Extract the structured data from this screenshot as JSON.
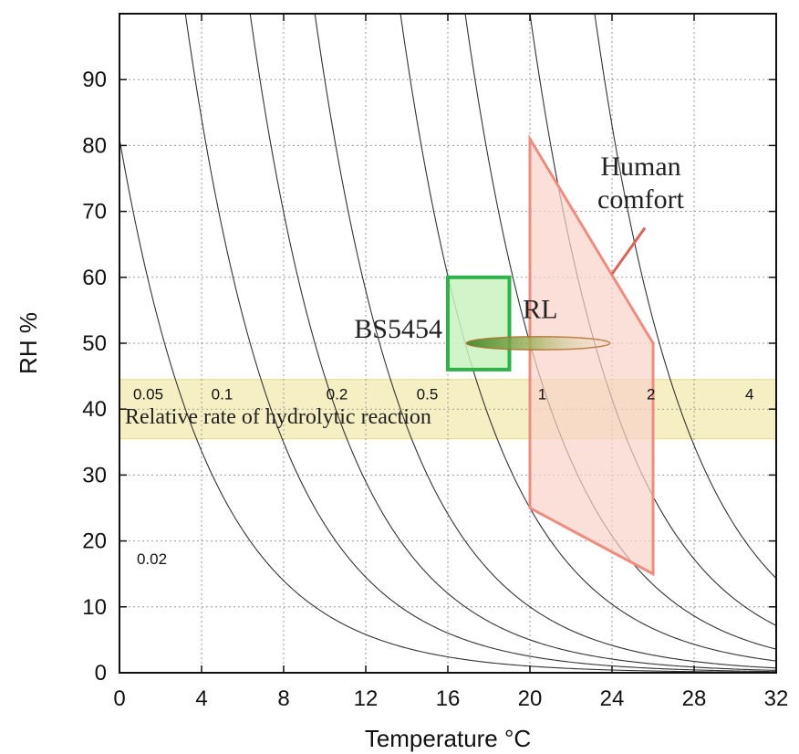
{
  "chart_data": {
    "type": "line",
    "xlabel": "Temperature °C",
    "ylabel": "RH %",
    "xlim": [
      0,
      32
    ],
    "ylim": [
      0,
      100
    ],
    "x_ticks": [
      0,
      4,
      8,
      12,
      16,
      20,
      24,
      28,
      32
    ],
    "y_ticks": [
      0,
      10,
      20,
      30,
      40,
      50,
      60,
      70,
      80,
      90
    ],
    "grid": true,
    "band": {
      "y_range": [
        35.5,
        44.5
      ],
      "caption": "Relative rate of hydrolytic reaction",
      "color": "#f5ecb8"
    },
    "isolines": [
      {
        "rate": 0.02,
        "label": "0.02",
        "label_x": 1.4
      },
      {
        "rate": 0.05,
        "label": "0.05",
        "label_x": 1.4
      },
      {
        "rate": 0.1,
        "label": "0.1",
        "label_x": 5.0
      },
      {
        "rate": 0.2,
        "label": "0.2",
        "label_x": 10.6
      },
      {
        "rate": 0.5,
        "label": "0.5",
        "label_x": 15.0
      },
      {
        "rate": 1,
        "label": "1",
        "label_x": 20.6
      },
      {
        "rate": 2,
        "label": "2",
        "label_x": 25.9
      },
      {
        "rate": 4,
        "label": "4",
        "label_x": 30.7
      }
    ],
    "regions": [
      {
        "name": "BS5454",
        "label": "BS5454",
        "shape": "rect",
        "x_range": [
          16,
          19
        ],
        "y_range": [
          46,
          60
        ],
        "fill": "#c9f2c0",
        "stroke": "#2fb24a"
      },
      {
        "name": "Human comfort",
        "label_lines": [
          "Human",
          "comfort"
        ],
        "shape": "polygon",
        "points": [
          [
            20,
            81
          ],
          [
            26,
            50
          ],
          [
            26,
            15
          ],
          [
            20,
            25
          ]
        ],
        "fill": "#f9d3c9",
        "stroke": "#ef8c80"
      },
      {
        "name": "RL",
        "label": "RL",
        "shape": "ellipse",
        "center": [
          20.4,
          50
        ],
        "x_radius": 3.5,
        "y_radius": 1.0,
        "stroke": "#b26a2a"
      }
    ]
  }
}
